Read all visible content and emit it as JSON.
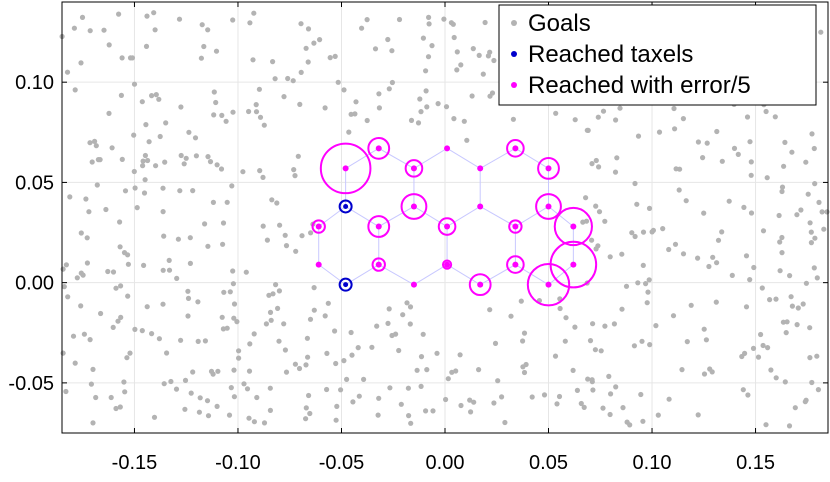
{
  "chart_data": {
    "type": "scatter",
    "title": "",
    "xlabel": "",
    "ylabel": "",
    "xlim": [
      -0.185,
      0.185
    ],
    "ylim": [
      -0.075,
      0.14
    ],
    "x_ticks": [
      -0.15,
      -0.1,
      -0.05,
      0.0,
      0.05,
      0.1,
      0.15
    ],
    "x_tick_labels": [
      "-0.15",
      "-0.10",
      "-0.05",
      "0.00",
      "0.05",
      "0.10",
      "0.15"
    ],
    "y_ticks": [
      -0.05,
      0.0,
      0.05,
      0.1
    ],
    "y_tick_labels": [
      "-0.05",
      "0.00",
      "0.05",
      "0.10"
    ],
    "grid": true,
    "legend_position": "top-right",
    "legend": [
      "Goals",
      "Reached taxels",
      "Reached with error/5"
    ],
    "colors": {
      "goals": "#b3b3b3",
      "reached_taxels": "#0000cc",
      "reached_error": "#ff00ff",
      "mesh": "#c8c8ff",
      "grid": "#e6e6e6"
    },
    "series": [
      {
        "name": "Goals",
        "type": "random-scatter",
        "approx_count": 650,
        "x_range": [
          -0.185,
          0.185
        ],
        "y_range": [
          -0.072,
          0.135
        ],
        "excluded_region": {
          "x": [
            -0.062,
            0.066
          ],
          "y": [
            -0.006,
            0.07
          ]
        }
      },
      {
        "name": "Reached taxels",
        "points": [
          {
            "x": -0.048,
            "y": 0.038
          },
          {
            "x": -0.048,
            "y": -0.001
          }
        ]
      },
      {
        "name": "Reached with error/5",
        "points": [
          {
            "x": -0.048,
            "y": 0.057,
            "r": 0.012
          },
          {
            "x": -0.032,
            "y": 0.067,
            "r": 0.005
          },
          {
            "x": -0.015,
            "y": 0.057,
            "r": 0.004
          },
          {
            "x": 0.001,
            "y": 0.067,
            "r": 0.0
          },
          {
            "x": 0.017,
            "y": 0.057,
            "r": 0.0
          },
          {
            "x": 0.034,
            "y": 0.067,
            "r": 0.004
          },
          {
            "x": 0.05,
            "y": 0.057,
            "r": 0.005
          },
          {
            "x": -0.015,
            "y": 0.038,
            "r": 0.006
          },
          {
            "x": 0.017,
            "y": 0.038,
            "r": 0.0
          },
          {
            "x": 0.05,
            "y": 0.038,
            "r": 0.006
          },
          {
            "x": -0.061,
            "y": 0.028,
            "r": 0.003
          },
          {
            "x": -0.032,
            "y": 0.028,
            "r": 0.005
          },
          {
            "x": 0.001,
            "y": 0.028,
            "r": 0.004
          },
          {
            "x": 0.034,
            "y": 0.028,
            "r": 0.003
          },
          {
            "x": 0.062,
            "y": 0.028,
            "r": 0.009
          },
          {
            "x": -0.061,
            "y": 0.009,
            "r": 0.0
          },
          {
            "x": -0.032,
            "y": 0.009,
            "r": 0.003
          },
          {
            "x": 0.001,
            "y": 0.009,
            "r": 0.002
          },
          {
            "x": 0.034,
            "y": 0.009,
            "r": 0.004
          },
          {
            "x": 0.062,
            "y": 0.009,
            "r": 0.011
          },
          {
            "x": -0.015,
            "y": -0.001,
            "r": 0.0
          },
          {
            "x": 0.017,
            "y": -0.001,
            "r": 0.005
          },
          {
            "x": 0.05,
            "y": -0.001,
            "r": 0.01
          }
        ]
      }
    ],
    "mesh_edges": [
      [
        [
          -0.048,
          0.057
        ],
        [
          -0.032,
          0.067
        ]
      ],
      [
        [
          -0.032,
          0.067
        ],
        [
          -0.015,
          0.057
        ]
      ],
      [
        [
          -0.015,
          0.057
        ],
        [
          0.001,
          0.067
        ]
      ],
      [
        [
          0.001,
          0.067
        ],
        [
          0.017,
          0.057
        ]
      ],
      [
        [
          0.017,
          0.057
        ],
        [
          0.034,
          0.067
        ]
      ],
      [
        [
          0.034,
          0.067
        ],
        [
          0.05,
          0.057
        ]
      ],
      [
        [
          -0.048,
          0.057
        ],
        [
          -0.048,
          0.038
        ]
      ],
      [
        [
          -0.015,
          0.057
        ],
        [
          -0.015,
          0.038
        ]
      ],
      [
        [
          0.017,
          0.057
        ],
        [
          0.017,
          0.038
        ]
      ],
      [
        [
          0.05,
          0.057
        ],
        [
          0.05,
          0.038
        ]
      ],
      [
        [
          -0.048,
          0.038
        ],
        [
          -0.061,
          0.028
        ]
      ],
      [
        [
          -0.048,
          0.038
        ],
        [
          -0.032,
          0.028
        ]
      ],
      [
        [
          -0.015,
          0.038
        ],
        [
          -0.032,
          0.028
        ]
      ],
      [
        [
          -0.015,
          0.038
        ],
        [
          0.001,
          0.028
        ]
      ],
      [
        [
          0.017,
          0.038
        ],
        [
          0.001,
          0.028
        ]
      ],
      [
        [
          0.017,
          0.038
        ],
        [
          0.034,
          0.028
        ]
      ],
      [
        [
          0.05,
          0.038
        ],
        [
          0.034,
          0.028
        ]
      ],
      [
        [
          0.05,
          0.038
        ],
        [
          0.062,
          0.028
        ]
      ],
      [
        [
          -0.061,
          0.028
        ],
        [
          -0.061,
          0.009
        ]
      ],
      [
        [
          -0.032,
          0.028
        ],
        [
          -0.032,
          0.009
        ]
      ],
      [
        [
          0.001,
          0.028
        ],
        [
          0.001,
          0.009
        ]
      ],
      [
        [
          0.034,
          0.028
        ],
        [
          0.034,
          0.009
        ]
      ],
      [
        [
          0.062,
          0.028
        ],
        [
          0.062,
          0.009
        ]
      ],
      [
        [
          -0.061,
          0.009
        ],
        [
          -0.048,
          -0.001
        ]
      ],
      [
        [
          -0.032,
          0.009
        ],
        [
          -0.048,
          -0.001
        ]
      ],
      [
        [
          -0.032,
          0.009
        ],
        [
          -0.015,
          -0.001
        ]
      ],
      [
        [
          0.001,
          0.009
        ],
        [
          -0.015,
          -0.001
        ]
      ],
      [
        [
          0.001,
          0.009
        ],
        [
          0.017,
          -0.001
        ]
      ],
      [
        [
          0.034,
          0.009
        ],
        [
          0.017,
          -0.001
        ]
      ],
      [
        [
          0.034,
          0.009
        ],
        [
          0.05,
          -0.001
        ]
      ],
      [
        [
          0.062,
          0.009
        ],
        [
          0.05,
          -0.001
        ]
      ]
    ]
  }
}
